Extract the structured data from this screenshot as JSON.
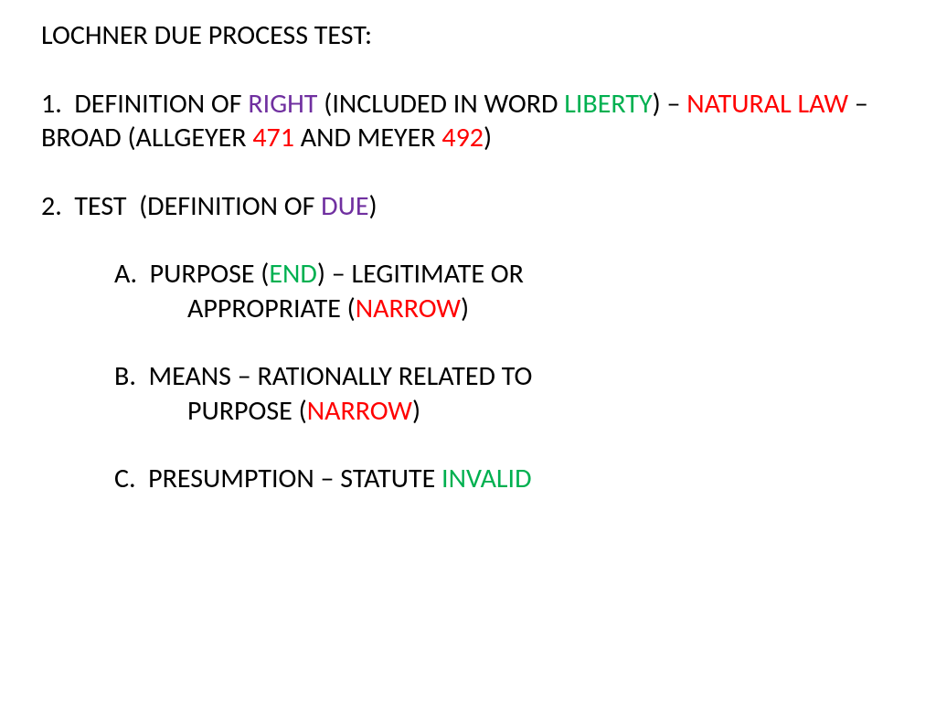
{
  "colors": {
    "black": "#000000",
    "purple": "#7030a0",
    "green": "#00b050",
    "red": "#ff0000"
  },
  "fontsize": 30,
  "title": "LOCHNER DUE PROCESS TEST:",
  "item1": {
    "l1_a": "1.  DEFINITION OF ",
    "l1_b": "RIGHT",
    "l1_c": " (INCLUDED IN WORD ",
    "l1_d": "LIBERTY",
    "l1_e": ") – ",
    "l2_a": "NATURAL LAW",
    "l2_b": " – BROAD (ALLGEYER ",
    "l2_c": "471",
    "l2_d": " AND MEYER ",
    "l3_a": "492",
    "l3_b": ")"
  },
  "item2": {
    "l1_a": "2.  TEST  (DEFINITION OF ",
    "l1_b": "DUE",
    "l1_c": ")"
  },
  "subA": {
    "l1_a": "A.  PURPOSE (",
    "l1_b": "END",
    "l1_c": ") – LEGITIMATE OR",
    "l2_a": "APPROPRIATE (",
    "l2_b": "NARROW",
    "l2_c": ")"
  },
  "subB": {
    "l1_a": "B.  MEANS – RATIONALLY RELATED TO",
    "l2_a": "PURPOSE (",
    "l2_b": "NARROW",
    "l2_c": ")"
  },
  "subC": {
    "l1_a": "C.  PRESUMPTION – STATUTE ",
    "l1_b": "INVALID"
  }
}
